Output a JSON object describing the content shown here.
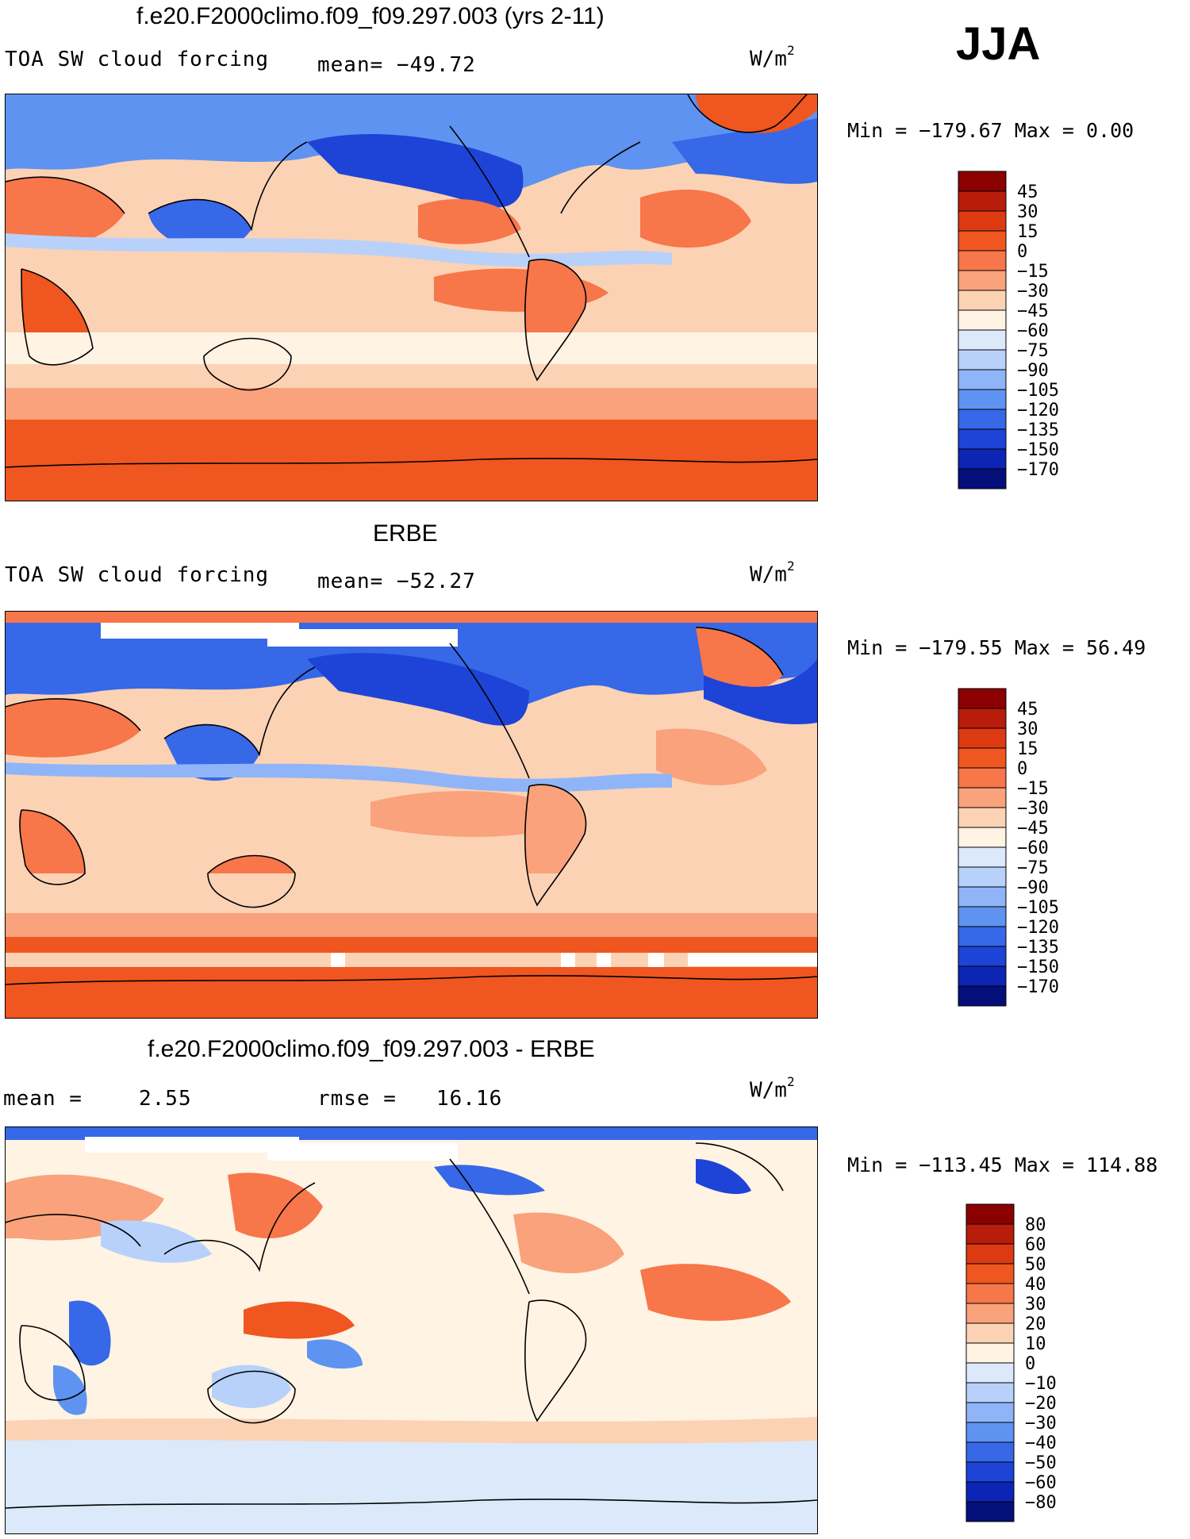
{
  "season": "JJA",
  "units_main": "W/m",
  "units_exp": "2",
  "panels": [
    {
      "title": "f.e20.F2000climo.f09_f09.297.003 (yrs 2-11)",
      "label": "TOA SW cloud forcing",
      "stat": "mean= −49.72",
      "minmax": "Min = −179.67 Max =   0.00",
      "legend_labels": [
        "45",
        "30",
        "15",
        "0",
        "−15",
        "−30",
        "−45",
        "−60",
        "−75",
        "−90",
        "−105",
        "−120",
        "−135",
        "−150",
        "−170"
      ],
      "legend_colors": [
        "#8b0000",
        "#b81c0a",
        "#dd3a12",
        "#f0561f",
        "#f7764a",
        "#f9a27c",
        "#fcd2b5",
        "#fff3e4",
        "#dbe9fb",
        "#b7d1fb",
        "#8fb5f8",
        "#5f93f1",
        "#3668e8",
        "#1d44d6",
        "#0d25b5",
        "#050f7a"
      ],
      "range": "Min = −179.67 Max = 0.00"
    },
    {
      "title": "ERBE",
      "label": "TOA SW cloud forcing",
      "stat": "mean= −52.27",
      "minmax": "Min = −179.55 Max =  56.49",
      "legend_labels": [
        "45",
        "30",
        "15",
        "0",
        "−15",
        "−30",
        "−45",
        "−60",
        "−75",
        "−90",
        "−105",
        "−120",
        "−135",
        "−150",
        "−170"
      ],
      "legend_colors": [
        "#8b0000",
        "#b81c0a",
        "#dd3a12",
        "#f0561f",
        "#f7764a",
        "#f9a27c",
        "#fcd2b5",
        "#fff3e4",
        "#dbe9fb",
        "#b7d1fb",
        "#8fb5f8",
        "#5f93f1",
        "#3668e8",
        "#1d44d6",
        "#0d25b5",
        "#050f7a"
      ]
    },
    {
      "title": "f.e20.F2000climo.f09_f09.297.003 - ERBE",
      "label": "mean =",
      "stat": "2.55",
      "rmse_label": "rmse =",
      "rmse": "16.16",
      "minmax": "Min = −113.45 Max = 114.88",
      "legend_labels": [
        "80",
        "60",
        "50",
        "40",
        "30",
        "20",
        "10",
        "0",
        "−10",
        "−20",
        "−30",
        "−40",
        "−50",
        "−60",
        "−80"
      ],
      "legend_colors": [
        "#8b0000",
        "#b81c0a",
        "#dd3a12",
        "#f0561f",
        "#f7764a",
        "#f9a27c",
        "#fcd2b5",
        "#fff3e4",
        "#dbe9fb",
        "#b7d1fb",
        "#8fb5f8",
        "#5f93f1",
        "#3668e8",
        "#1d44d6",
        "#0d25b5",
        "#050f7a"
      ]
    }
  ]
}
